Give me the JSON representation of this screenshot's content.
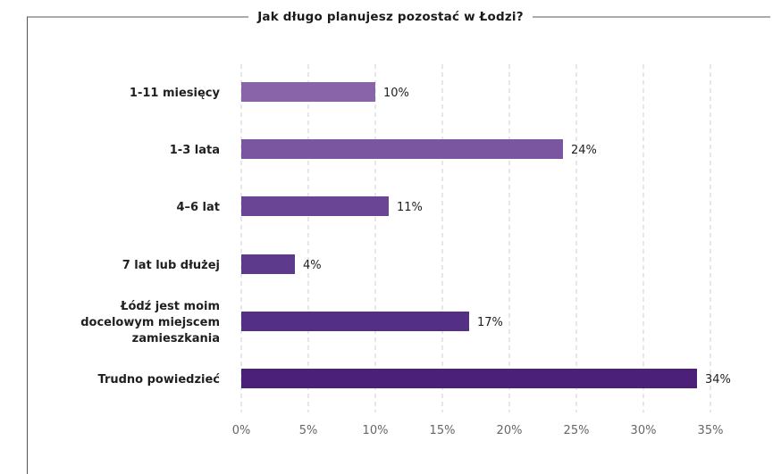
{
  "chart_data": {
    "type": "bar",
    "orientation": "horizontal",
    "title": "Jak długo planujesz pozostać w Łodzi?",
    "categories": [
      [
        "1-11 miesięcy"
      ],
      [
        "1-3 lata"
      ],
      [
        "4–6 lat"
      ],
      [
        "7 lat lub dłużej"
      ],
      [
        "Łódź jest moim",
        "docelowym miejscem",
        "zamieszkania"
      ],
      [
        "Trudno powiedzieć"
      ]
    ],
    "values": [
      10,
      24,
      11,
      4,
      17,
      34
    ],
    "value_labels": [
      "10%",
      "24%",
      "11%",
      "4%",
      "17%",
      "34%"
    ],
    "bar_colors": [
      "#8a64a8",
      "#7a55a0",
      "#6a4596",
      "#5e3a8d",
      "#542f86",
      "#4a2078"
    ],
    "xlim": [
      0,
      35
    ],
    "xticks": [
      0,
      5,
      10,
      15,
      20,
      25,
      30,
      35
    ],
    "xtick_labels": [
      "0%",
      "5%",
      "10%",
      "15%",
      "20%",
      "25%",
      "30%",
      "35%"
    ],
    "grid": "vertical-dashed",
    "legend": "none"
  }
}
